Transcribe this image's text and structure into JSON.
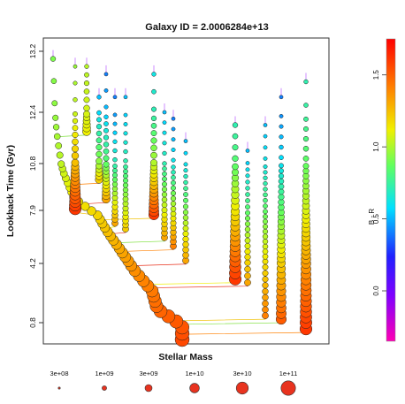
{
  "chart_data": {
    "type": "scatter",
    "title": "Galaxy ID =  2.0006284e+13",
    "xlabel": "Stellar Mass",
    "ylabel": "Lookback Time (Gyr)",
    "yticks": [
      "0.8",
      "4.2",
      "7.9",
      "10.8",
      "12.4",
      "13.2"
    ],
    "ylim": [
      0,
      13.2
    ],
    "x_axis_ticks": "none",
    "colorbar": {
      "label": "B - R",
      "range": [
        -0.35,
        1.75
      ],
      "ticks": [
        "0.0",
        "0.5",
        "1.0",
        "1.5"
      ],
      "colors": [
        "#ff00b4",
        "#2020ff",
        "#00e0ff",
        "#60ff60",
        "#f0f000",
        "#ff8000",
        "#ff0000"
      ]
    },
    "size_legend": {
      "labels": [
        "3e+08",
        "1e+09",
        "3e+09",
        "1e+10",
        "3e+10",
        "1e+11"
      ],
      "color": "#e8331f"
    },
    "branches": [
      {
        "name": "main",
        "lookback_end": 0.0,
        "lookback_start": 13.1,
        "br_end": 1.55,
        "br_start": 0.9,
        "mass_end": 100000000000.0,
        "mass_start": 500000000.0
      },
      {
        "name": "b1",
        "lookback_end": 8.0,
        "lookback_start": 13.0,
        "br_end": 1.6,
        "br_start": 0.95,
        "mass_end": 30000000000.0,
        "mass_start": 200000000.0
      },
      {
        "name": "b2",
        "lookback_end": 11.8,
        "lookback_start": 13.0,
        "br_end": 1.1,
        "br_start": 1.0,
        "mass_end": 3000000000.0,
        "mass_start": 300000000.0
      },
      {
        "name": "b3",
        "lookback_end": 9.8,
        "lookback_start": 12.6,
        "br_end": 1.2,
        "br_start": 0.5,
        "mass_end": 2000000000.0,
        "mass_start": 300000000.0
      },
      {
        "name": "b4",
        "lookback_end": 8.6,
        "lookback_start": 12.9,
        "br_end": 1.3,
        "br_start": 0.4,
        "mass_end": 3000000000.0,
        "mass_start": 200000000.0
      },
      {
        "name": "b5",
        "lookback_end": 7.0,
        "lookback_start": 12.6,
        "br_end": 1.3,
        "br_start": 0.4,
        "mass_end": 1000000000.0,
        "mass_start": 200000000.0
      },
      {
        "name": "b6",
        "lookback_end": 6.6,
        "lookback_start": 12.6,
        "br_end": 1.2,
        "br_start": 0.5,
        "mass_end": 1000000000.0,
        "mass_start": 200000000.0
      },
      {
        "name": "b7",
        "lookback_end": 7.6,
        "lookback_start": 12.9,
        "br_end": 1.6,
        "br_start": 0.6,
        "mass_end": 10000000000.0,
        "mass_start": 300000000.0
      },
      {
        "name": "b8",
        "lookback_end": 6.0,
        "lookback_start": 12.4,
        "br_end": 1.3,
        "br_start": 0.5,
        "mass_end": 1000000000.0,
        "mass_start": 200000000.0
      },
      {
        "name": "b9",
        "lookback_end": 5.4,
        "lookback_start": 12.2,
        "br_end": 1.4,
        "br_start": 0.4,
        "mass_end": 1000000000.0,
        "mass_start": 200000000.0
      },
      {
        "name": "b10",
        "lookback_end": 4.4,
        "lookback_start": 11.5,
        "br_end": 1.3,
        "br_start": 0.5,
        "mass_end": 1000000000.0,
        "mass_start": 200000000.0
      },
      {
        "name": "b11",
        "lookback_end": 3.3,
        "lookback_start": 12.0,
        "br_end": 1.6,
        "br_start": 0.7,
        "mass_end": 30000000000.0,
        "mass_start": 500000000.0
      },
      {
        "name": "b12",
        "lookback_end": 3.1,
        "lookback_start": 11.2,
        "br_end": 1.3,
        "br_start": 0.5,
        "mass_end": 1000000000.0,
        "mass_start": 200000000.0
      },
      {
        "name": "b13",
        "lookback_end": 1.2,
        "lookback_start": 12.0,
        "br_end": 1.4,
        "br_start": 0.5,
        "mass_end": 1000000000.0,
        "mass_start": 200000000.0
      },
      {
        "name": "b14",
        "lookback_end": 1.0,
        "lookback_start": 12.6,
        "br_end": 1.5,
        "br_start": 0.4,
        "mass_end": 10000000000.0,
        "mass_start": 200000000.0
      },
      {
        "name": "b15",
        "lookback_end": 0.5,
        "lookback_start": 12.8,
        "br_end": 1.6,
        "br_start": 0.7,
        "mass_end": 30000000000.0,
        "mass_start": 300000000.0
      }
    ]
  }
}
